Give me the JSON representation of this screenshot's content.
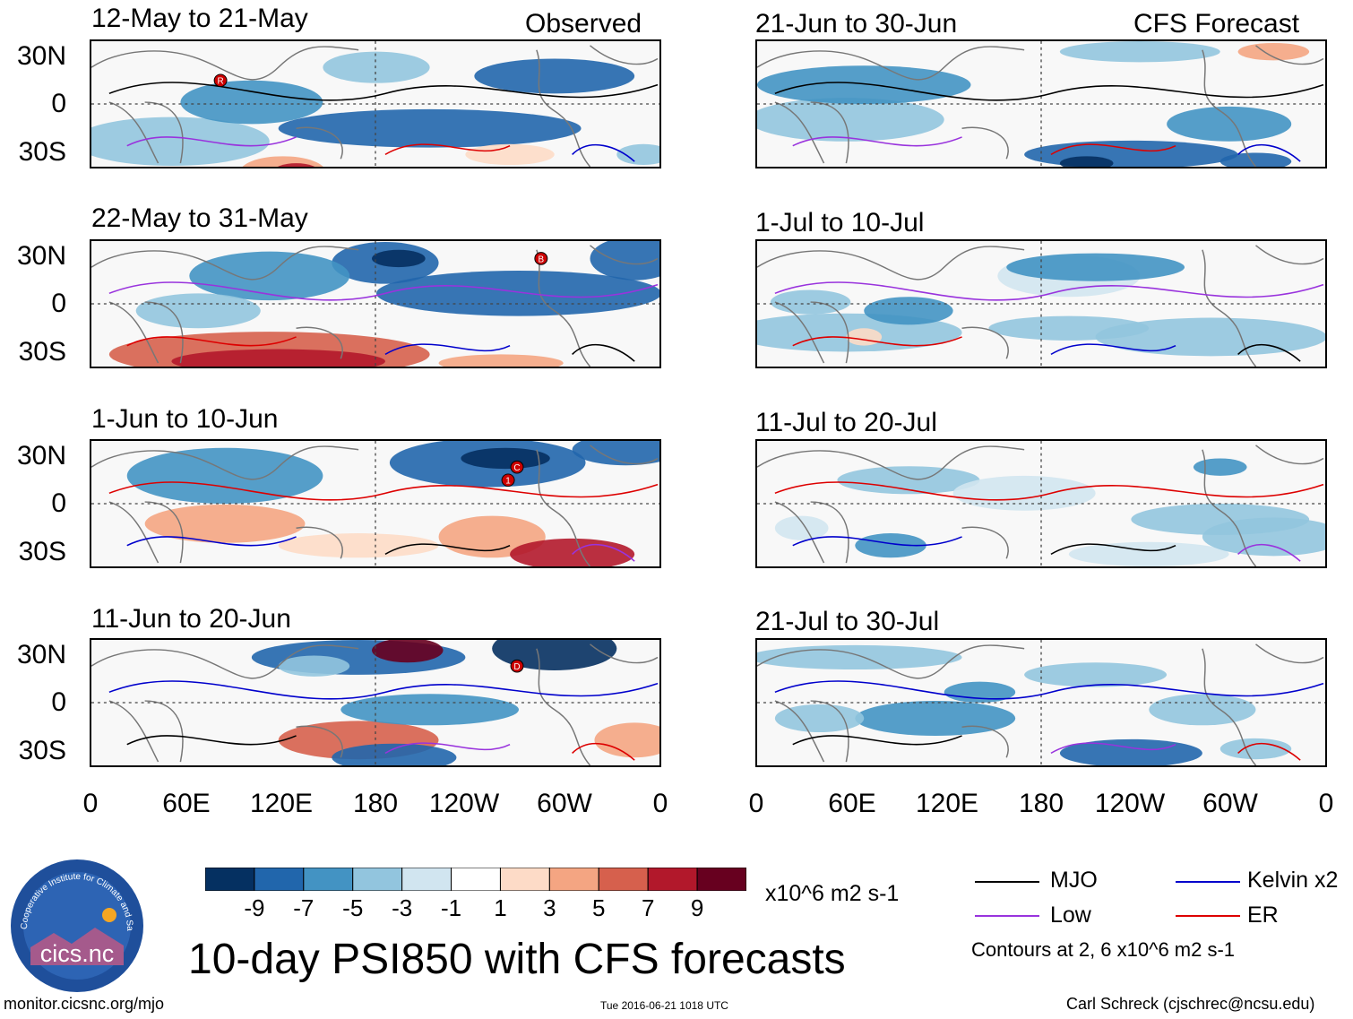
{
  "chart_data": {
    "type": "heatmap",
    "title": "10-day PSI850 with CFS forecasts",
    "variable": "PSI850 anomaly",
    "units": "x10^6 m2 s-1",
    "x_ticks": [
      "0",
      "60E",
      "120E",
      "180",
      "120W",
      "60W",
      "0"
    ],
    "y_ticks": [
      "30N",
      "0",
      "30S"
    ],
    "panels": [
      {
        "title": "12-May to 21-May",
        "tag": "Observed",
        "column": "observed",
        "markers": [
          "R"
        ]
      },
      {
        "title": "22-May to 31-May",
        "tag": "",
        "column": "observed",
        "markers": [
          "B"
        ]
      },
      {
        "title": "1-Jun to 10-Jun",
        "tag": "",
        "column": "observed",
        "markers": [
          "1",
          "C"
        ]
      },
      {
        "title": "11-Jun to 20-Jun",
        "tag": "",
        "column": "observed",
        "markers": [
          "D"
        ]
      },
      {
        "title": "21-Jun to 30-Jun",
        "tag": "CFS Forecast",
        "column": "forecast",
        "markers": []
      },
      {
        "title": "1-Jul to 10-Jul",
        "tag": "",
        "column": "forecast",
        "markers": []
      },
      {
        "title": "11-Jul to 20-Jul",
        "tag": "",
        "column": "forecast",
        "markers": []
      },
      {
        "title": "21-Jul to 30-Jul",
        "tag": "",
        "column": "forecast",
        "markers": []
      }
    ],
    "colorbar": {
      "labels": [
        "-9",
        "-7",
        "-5",
        "-3",
        "-1",
        "1",
        "3",
        "5",
        "7",
        "9"
      ],
      "colors": [
        "#053061",
        "#2166ac",
        "#4393c3",
        "#92c5de",
        "#d1e5f0",
        "#ffffff",
        "#fddbc7",
        "#f4a582",
        "#d6604d",
        "#b2182b",
        "#67001f"
      ],
      "units_label": "x10^6 m2 s-1"
    },
    "legend": [
      {
        "label": "MJO",
        "color": "#000000"
      },
      {
        "label": "Kelvin x2",
        "color": "#0000cc"
      },
      {
        "label": "Low",
        "color": "#9933dd"
      },
      {
        "label": "ER",
        "color": "#dd0000"
      }
    ],
    "contour_note": "Contours at 2, 6 x10^6 m2 s-1"
  },
  "footer": {
    "website": "monitor.cicsnc.org/mjo",
    "timestamp": "Tue 2016-06-21 1018 UTC",
    "author": "Carl Schreck (cjschrec@ncsu.edu)"
  },
  "logo": {
    "arc_text": "Cooperative Institute for Climate and Satellites",
    "wordmark": "cics.nc"
  }
}
